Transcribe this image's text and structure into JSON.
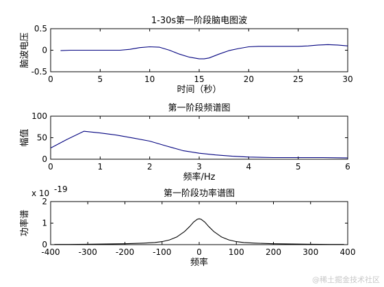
{
  "watermark": "@稀土掘金技术社区",
  "chart_data": [
    {
      "type": "line",
      "title": "1-30s第一阶段脑电图波",
      "xlabel": "时间（秒）",
      "ylabel": "脑波电压",
      "xlim": [
        0,
        30
      ],
      "ylim": [
        -0.5,
        0.5
      ],
      "xticks": [
        "0",
        "5",
        "10",
        "15",
        "20",
        "25",
        "30"
      ],
      "yticks": [
        "-0.5",
        "0",
        "0.5"
      ],
      "color": "#00007f",
      "grid": false,
      "series": [
        {
          "x": [
            1,
            2,
            3,
            4,
            5,
            6,
            7,
            8,
            9,
            10,
            11,
            12,
            13,
            14,
            15,
            15.5,
            16,
            17,
            18,
            19,
            20,
            21,
            22,
            23,
            24,
            25,
            26,
            27,
            28,
            29,
            30
          ],
          "y": [
            -0.01,
            0.0,
            0.0,
            0.0,
            0.0,
            0.0,
            0.0,
            0.02,
            0.06,
            0.08,
            0.07,
            0.0,
            -0.09,
            -0.16,
            -0.2,
            -0.2,
            -0.18,
            -0.09,
            -0.01,
            0.04,
            0.08,
            0.09,
            0.09,
            0.09,
            0.09,
            0.09,
            0.1,
            0.12,
            0.13,
            0.12,
            0.1
          ]
        }
      ]
    },
    {
      "type": "line",
      "title": "第一阶段频谱图",
      "xlabel": "频率/Hz",
      "ylabel": "幅值",
      "xlim": [
        0,
        6
      ],
      "ylim": [
        0,
        100
      ],
      "xticks": [
        "0",
        "1",
        "2",
        "3",
        "4",
        "5",
        "6"
      ],
      "yticks": [
        "0",
        "50",
        "100"
      ],
      "color": "#00007f",
      "grid": false,
      "series": [
        {
          "x": [
            0,
            0.33,
            0.67,
            1.0,
            1.33,
            1.67,
            2.0,
            2.33,
            2.67,
            3.0,
            3.33,
            3.67,
            4.0,
            4.5,
            5.0,
            5.5,
            6.0
          ],
          "y": [
            26,
            46,
            65,
            61,
            56,
            49,
            42,
            31,
            20,
            14,
            10,
            7,
            5,
            4,
            4,
            4,
            3
          ]
        }
      ]
    },
    {
      "type": "line",
      "title": "第一阶段功率谱图",
      "xlabel": "频率",
      "ylabel": "功率谱",
      "xlim": [
        -400,
        400
      ],
      "ylim": [
        0,
        2
      ],
      "exponent_label": "x 10",
      "exponent_power": "-19",
      "xticks": [
        "-400",
        "-300",
        "-200",
        "-100",
        "0",
        "100",
        "200",
        "300",
        "400"
      ],
      "yticks": [
        "0",
        "1",
        "2"
      ],
      "color": "#000000",
      "grid": false,
      "series": [
        {
          "x": [
            -390,
            -350,
            -300,
            -250,
            -200,
            -150,
            -120,
            -100,
            -80,
            -60,
            -40,
            -25,
            -15,
            -5,
            0,
            5,
            15,
            25,
            40,
            60,
            80,
            100,
            120,
            150,
            200,
            250,
            300,
            350,
            390
          ],
          "y": [
            0.01,
            0.01,
            0.02,
            0.03,
            0.04,
            0.07,
            0.1,
            0.14,
            0.22,
            0.36,
            0.6,
            0.85,
            1.05,
            1.18,
            1.2,
            1.18,
            1.05,
            0.85,
            0.6,
            0.36,
            0.22,
            0.14,
            0.1,
            0.07,
            0.04,
            0.03,
            0.02,
            0.01,
            0.01
          ]
        }
      ]
    }
  ]
}
